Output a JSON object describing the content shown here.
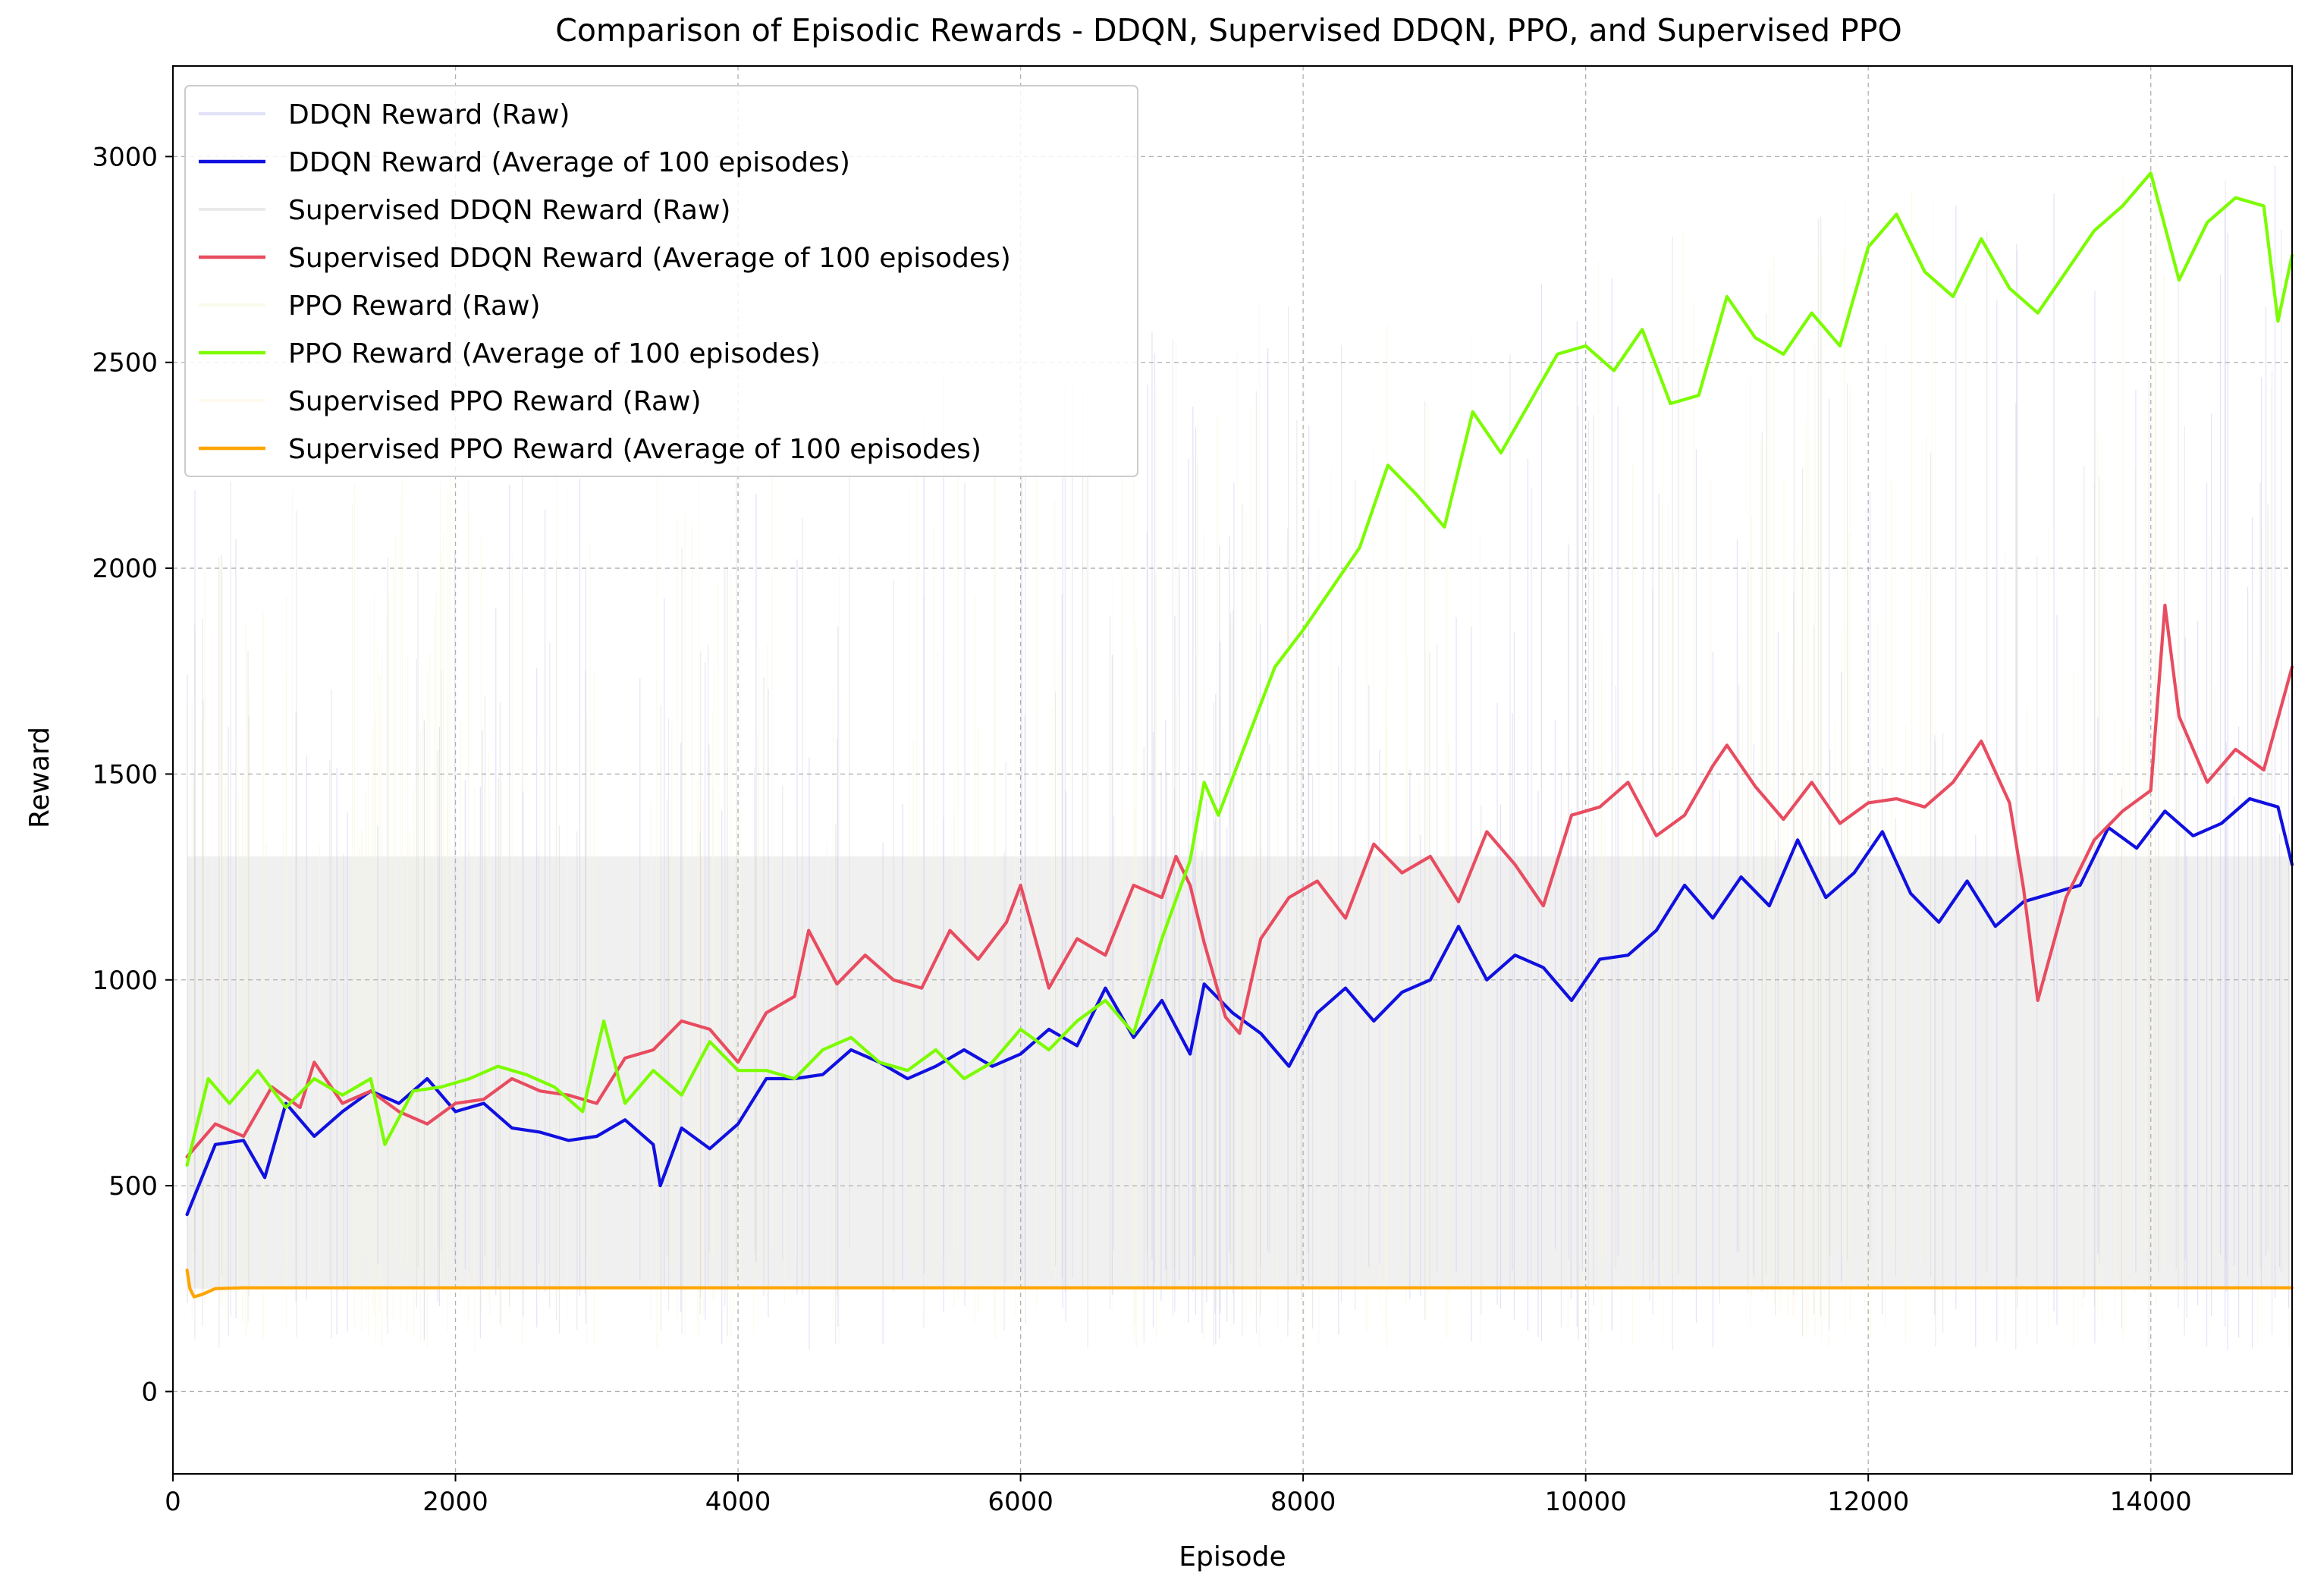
{
  "chart_data": {
    "type": "line",
    "title": "Comparison of Episodic Rewards - DDQN, Supervised DDQN, PPO, and Supervised PPO",
    "xlabel": "Episode",
    "ylabel": "Reward",
    "xlim": [
      0,
      15000
    ],
    "ylim": [
      -200,
      3220
    ],
    "xticks": [
      0,
      2000,
      4000,
      6000,
      8000,
      10000,
      12000,
      14000
    ],
    "yticks": [
      0,
      500,
      1000,
      1500,
      2000,
      2500,
      3000
    ],
    "xtick_labels": [
      "0",
      "2000",
      "4000",
      "6000",
      "8000",
      "10000",
      "12000",
      "14000"
    ],
    "ytick_labels": [
      "0",
      "500",
      "1000",
      "1500",
      "2000",
      "2500",
      "3000"
    ],
    "grid": true,
    "legend_position": "upper-left",
    "raw_band": {
      "low": 250,
      "high": 1300
    },
    "series": [
      {
        "name": "DDQN Reward (Raw)",
        "kind": "raw",
        "color": "#c8c8f0",
        "x": [],
        "values": []
      },
      {
        "name": "DDQN Reward (Average of 100 episodes)",
        "kind": "average",
        "color": "#1010e0",
        "x": [
          100,
          300,
          500,
          650,
          800,
          1000,
          1200,
          1400,
          1600,
          1800,
          2000,
          2200,
          2400,
          2600,
          2800,
          3000,
          3200,
          3400,
          3450,
          3600,
          3800,
          4000,
          4200,
          4400,
          4600,
          4800,
          5000,
          5200,
          5400,
          5600,
          5800,
          6000,
          6200,
          6400,
          6600,
          6800,
          7000,
          7200,
          7300,
          7500,
          7700,
          7900,
          8100,
          8300,
          8500,
          8700,
          8900,
          9100,
          9300,
          9500,
          9700,
          9900,
          10100,
          10300,
          10500,
          10700,
          10900,
          11100,
          11300,
          11500,
          11700,
          11900,
          12100,
          12300,
          12500,
          12700,
          12900,
          13100,
          13300,
          13500,
          13700,
          13900,
          14100,
          14300,
          14500,
          14700,
          14900,
          15000
        ],
        "values": [
          430,
          600,
          610,
          520,
          700,
          620,
          680,
          730,
          700,
          760,
          680,
          700,
          640,
          630,
          610,
          620,
          660,
          600,
          500,
          640,
          590,
          650,
          760,
          760,
          770,
          830,
          800,
          760,
          790,
          830,
          790,
          820,
          880,
          840,
          980,
          860,
          950,
          820,
          990,
          920,
          870,
          790,
          920,
          980,
          900,
          970,
          1000,
          1130,
          1000,
          1060,
          1030,
          950,
          1050,
          1060,
          1120,
          1230,
          1150,
          1250,
          1180,
          1340,
          1200,
          1260,
          1360,
          1210,
          1140,
          1240,
          1130,
          1190,
          1210,
          1230,
          1370,
          1320,
          1410,
          1350,
          1380,
          1440,
          1420,
          1280
        ]
      },
      {
        "name": "Supervised DDQN Reward (Raw)",
        "kind": "raw",
        "color": "#d8d8d8",
        "x": [],
        "values": []
      },
      {
        "name": "Supervised DDQN Reward (Average of 100 episodes)",
        "kind": "average",
        "color": "#e84c60",
        "x": [
          100,
          300,
          500,
          700,
          900,
          1000,
          1200,
          1400,
          1600,
          1800,
          2000,
          2200,
          2400,
          2600,
          2800,
          3000,
          3200,
          3400,
          3600,
          3800,
          4000,
          4200,
          4400,
          4500,
          4700,
          4900,
          5100,
          5300,
          5500,
          5700,
          5900,
          6000,
          6200,
          6400,
          6600,
          6800,
          7000,
          7100,
          7200,
          7300,
          7450,
          7550,
          7700,
          7900,
          8100,
          8300,
          8500,
          8700,
          8900,
          9100,
          9300,
          9500,
          9700,
          9900,
          10100,
          10300,
          10500,
          10700,
          10900,
          11000,
          11200,
          11400,
          11600,
          11800,
          12000,
          12200,
          12400,
          12600,
          12800,
          13000,
          13100,
          13200,
          13400,
          13600,
          13800,
          14000,
          14100,
          14200,
          14400,
          14600,
          14800,
          15000
        ],
        "values": [
          570,
          650,
          620,
          740,
          690,
          800,
          700,
          730,
          680,
          650,
          700,
          710,
          760,
          730,
          720,
          700,
          810,
          830,
          900,
          880,
          800,
          920,
          960,
          1120,
          990,
          1060,
          1000,
          980,
          1120,
          1050,
          1140,
          1230,
          980,
          1100,
          1060,
          1230,
          1200,
          1300,
          1230,
          1090,
          910,
          870,
          1100,
          1200,
          1240,
          1150,
          1330,
          1260,
          1300,
          1190,
          1360,
          1280,
          1180,
          1400,
          1420,
          1480,
          1350,
          1400,
          1520,
          1570,
          1470,
          1390,
          1480,
          1380,
          1430,
          1440,
          1420,
          1480,
          1580,
          1430,
          1220,
          950,
          1200,
          1340,
          1410,
          1460,
          1910,
          1640,
          1480,
          1560,
          1510,
          1760
        ]
      },
      {
        "name": "PPO Reward (Raw)",
        "kind": "raw",
        "color": "#f5f8d8",
        "x": [],
        "values": []
      },
      {
        "name": "PPO Reward (Average of 100 episodes)",
        "kind": "average",
        "color": "#7cfc00",
        "x": [
          100,
          250,
          400,
          600,
          800,
          1000,
          1200,
          1400,
          1500,
          1700,
          1900,
          2100,
          2300,
          2500,
          2700,
          2900,
          3050,
          3200,
          3400,
          3600,
          3800,
          4000,
          4200,
          4400,
          4600,
          4800,
          5000,
          5200,
          5400,
          5600,
          5800,
          6000,
          6200,
          6400,
          6600,
          6800,
          7000,
          7200,
          7300,
          7400,
          7600,
          7800,
          8000,
          8200,
          8400,
          8600,
          8800,
          9000,
          9200,
          9400,
          9600,
          9800,
          10000,
          10200,
          10400,
          10600,
          10800,
          11000,
          11200,
          11400,
          11600,
          11800,
          12000,
          12200,
          12400,
          12600,
          12800,
          13000,
          13200,
          13400,
          13600,
          13800,
          14000,
          14200,
          14400,
          14600,
          14800,
          14900,
          15000
        ],
        "values": [
          550,
          760,
          700,
          780,
          690,
          760,
          720,
          760,
          600,
          730,
          740,
          760,
          790,
          770,
          740,
          680,
          900,
          700,
          780,
          720,
          850,
          780,
          780,
          760,
          830,
          860,
          800,
          780,
          830,
          760,
          800,
          880,
          830,
          900,
          950,
          870,
          1100,
          1290,
          1480,
          1400,
          1580,
          1760,
          1850,
          1950,
          2050,
          2250,
          2180,
          2100,
          2380,
          2280,
          2400,
          2520,
          2540,
          2480,
          2580,
          2400,
          2420,
          2660,
          2560,
          2520,
          2620,
          2540,
          2780,
          2860,
          2720,
          2660,
          2800,
          2680,
          2620,
          2720,
          2820,
          2880,
          2960,
          2700,
          2840,
          2900,
          2880,
          2600,
          2760
        ]
      },
      {
        "name": "Supervised PPO Reward (Raw)",
        "kind": "raw",
        "color": "#fdf6e0",
        "x": [],
        "values": []
      },
      {
        "name": "Supervised PPO Reward (Average of 100 episodes)",
        "kind": "average",
        "color": "#ffa500",
        "x": [
          100,
          120,
          150,
          200,
          300,
          500,
          15000
        ],
        "values": [
          295,
          250,
          230,
          235,
          250,
          252,
          252
        ]
      }
    ]
  }
}
